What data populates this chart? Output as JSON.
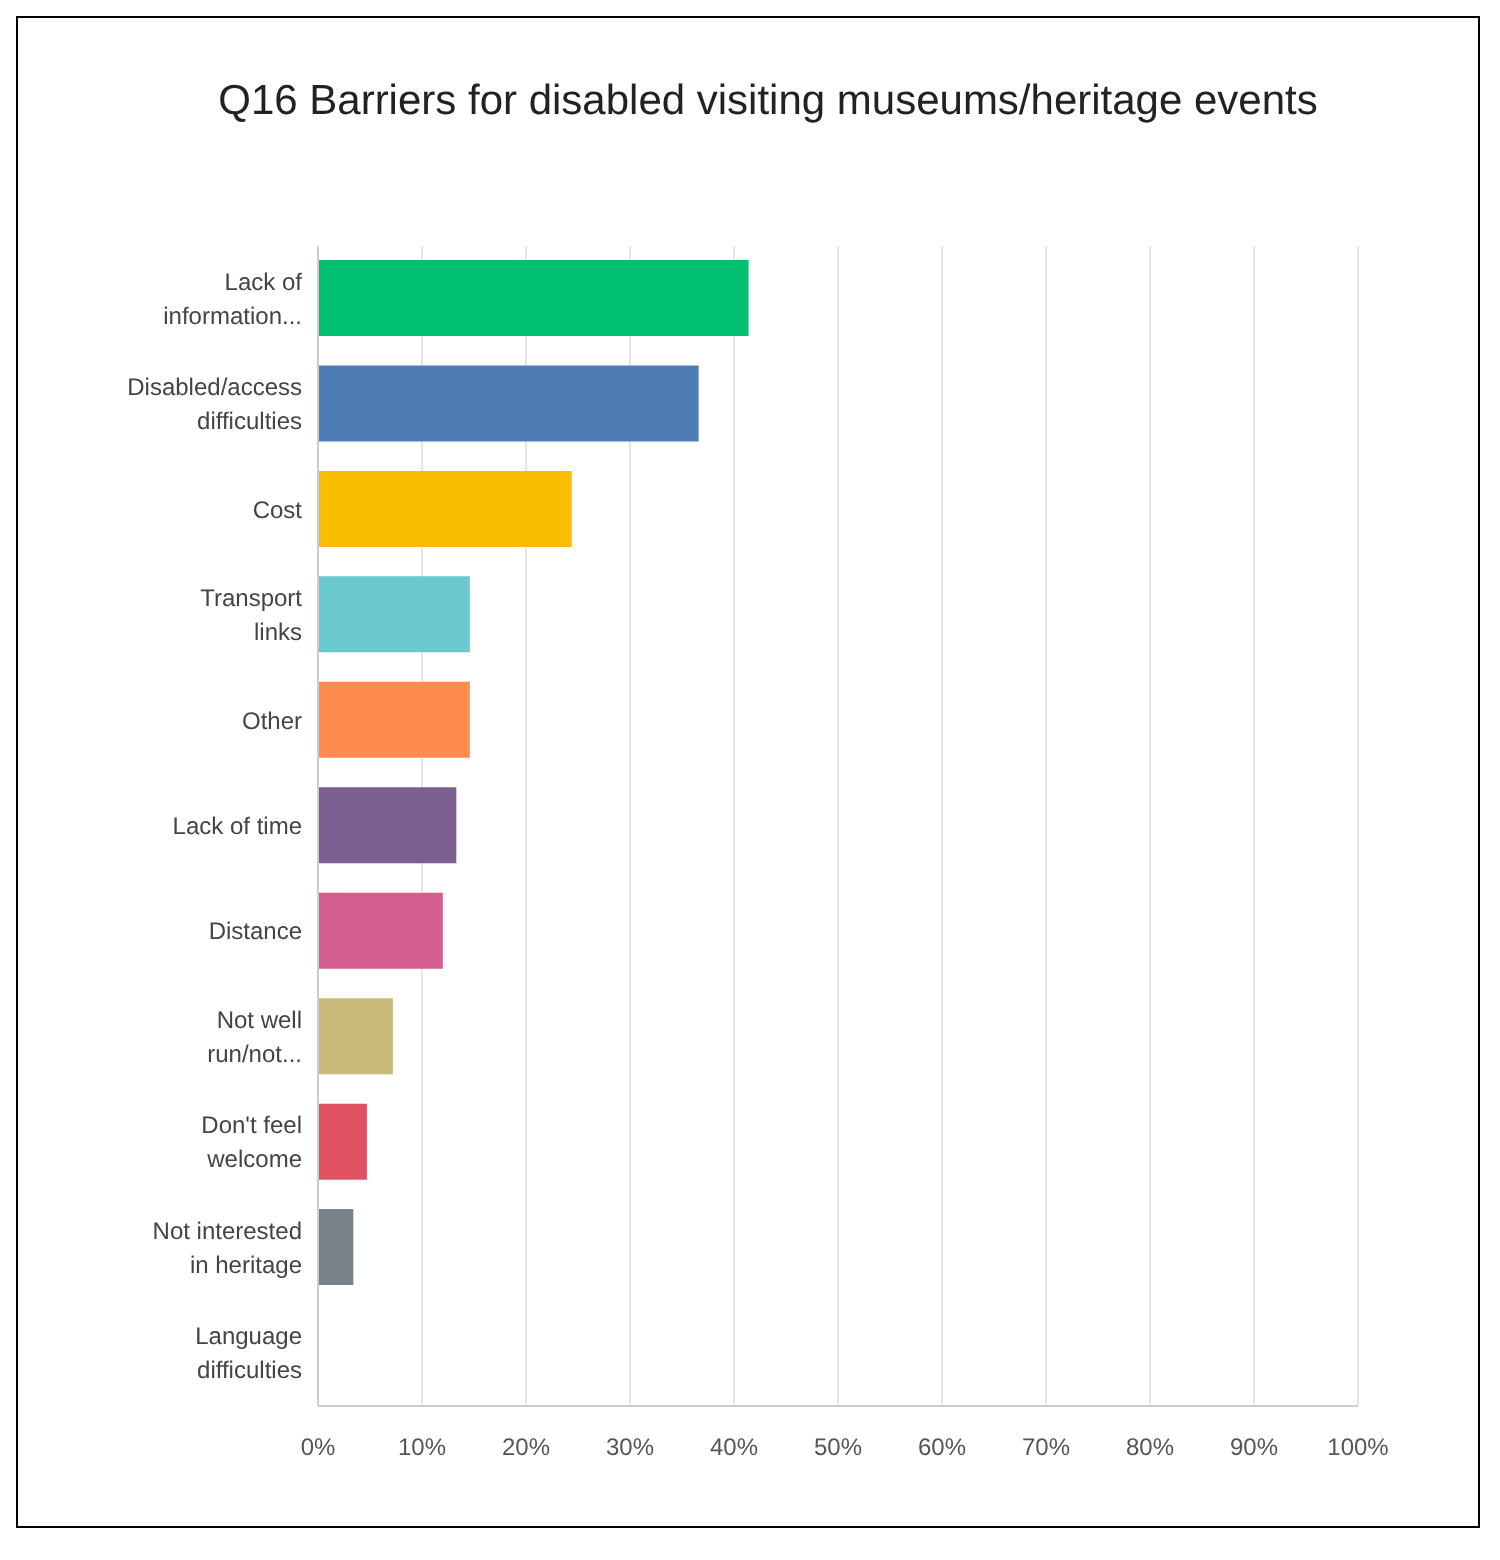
{
  "chart_data": {
    "type": "bar",
    "orientation": "horizontal",
    "title": "Q16 Barriers for disabled visiting museums/heritage events",
    "categories": [
      "Lack of information...",
      "Disabled/access difficulties",
      "Cost",
      "Transport links",
      "Other",
      "Lack of time",
      "Distance",
      "Not well run/not...",
      "Don't feel welcome",
      "Not interested in heritage",
      "Language difficulties"
    ],
    "values": [
      41.4,
      36.6,
      24.4,
      14.6,
      14.6,
      13.3,
      12.0,
      7.2,
      4.7,
      3.4,
      0
    ],
    "colors": [
      "#00bf6f",
      "#507cb6",
      "#f9be00",
      "#6bc8cd",
      "#ff8b4f",
      "#7d5e90",
      "#d25f90",
      "#c9b97a",
      "#e05161",
      "#7a8288",
      "#b5a9c4"
    ],
    "xlim": [
      0,
      100
    ],
    "xticks": [
      {
        "value": 0,
        "label": "0%"
      },
      {
        "value": 10,
        "label": "10%"
      },
      {
        "value": 20,
        "label": "20%"
      },
      {
        "value": 30,
        "label": "30%"
      },
      {
        "value": 40,
        "label": "40%"
      },
      {
        "value": 50,
        "label": "50%"
      },
      {
        "value": 60,
        "label": "60%"
      },
      {
        "value": 70,
        "label": "70%"
      },
      {
        "value": 80,
        "label": "80%"
      },
      {
        "value": 90,
        "label": "90%"
      },
      {
        "value": 100,
        "label": "100%"
      }
    ],
    "grid": "x"
  }
}
